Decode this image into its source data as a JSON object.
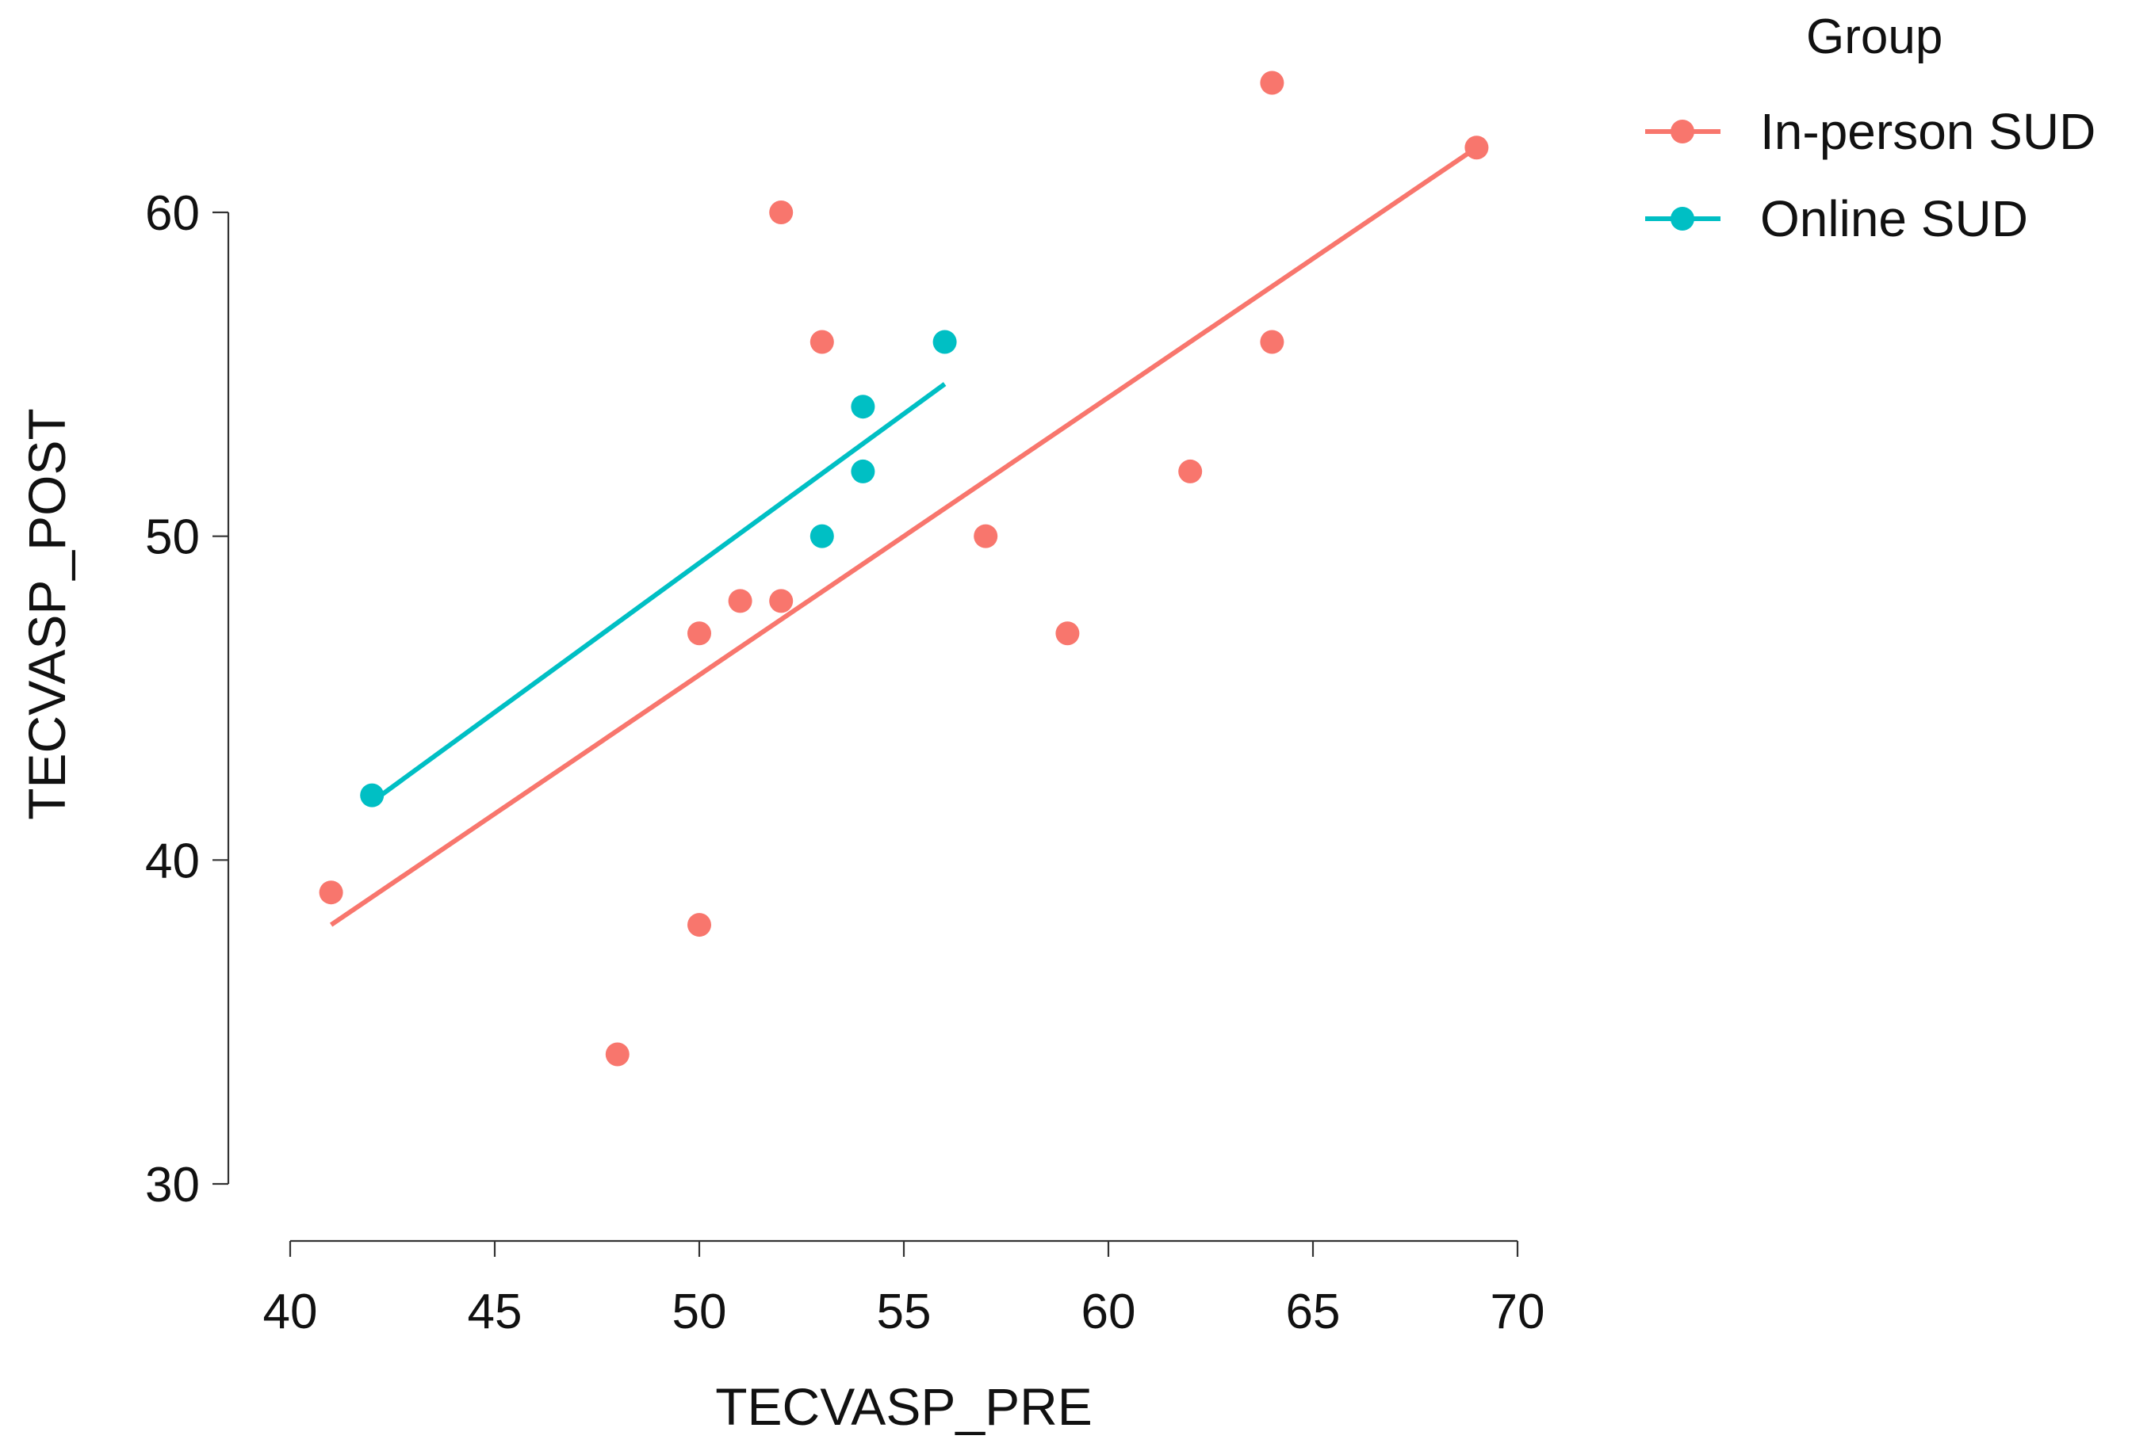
{
  "chart_data": {
    "type": "scatter",
    "title": "",
    "xlabel": "TECVASP_PRE",
    "ylabel": "TECVASP_POST",
    "xlim": [
      40,
      70
    ],
    "ylim": [
      30,
      60
    ],
    "xticks": [
      40,
      45,
      50,
      55,
      60,
      65,
      70
    ],
    "yticks": [
      30,
      40,
      50,
      60
    ],
    "grid": false,
    "legend": {
      "title": "Group",
      "position": "top-right"
    },
    "series": [
      {
        "name": "In-person SUD",
        "color": "#F8766D",
        "points": [
          {
            "x": 41,
            "y": 39
          },
          {
            "x": 48,
            "y": 34
          },
          {
            "x": 50,
            "y": 38
          },
          {
            "x": 50,
            "y": 47
          },
          {
            "x": 51,
            "y": 48
          },
          {
            "x": 52,
            "y": 48
          },
          {
            "x": 52,
            "y": 60
          },
          {
            "x": 53,
            "y": 56
          },
          {
            "x": 57,
            "y": 50
          },
          {
            "x": 59,
            "y": 47
          },
          {
            "x": 62,
            "y": 52
          },
          {
            "x": 64,
            "y": 56
          },
          {
            "x": 64,
            "y": 64
          },
          {
            "x": 69,
            "y": 62
          }
        ],
        "fit_line": [
          {
            "x": 41,
            "y": 38
          },
          {
            "x": 69,
            "y": 62
          }
        ]
      },
      {
        "name": "Online SUD",
        "color": "#00BFC4",
        "points": [
          {
            "x": 42,
            "y": 42
          },
          {
            "x": 53,
            "y": 50
          },
          {
            "x": 54,
            "y": 52
          },
          {
            "x": 54,
            "y": 54
          },
          {
            "x": 56,
            "y": 56
          }
        ],
        "fit_line": [
          {
            "x": 42,
            "y": 41.8
          },
          {
            "x": 56,
            "y": 54.7
          }
        ]
      }
    ]
  }
}
